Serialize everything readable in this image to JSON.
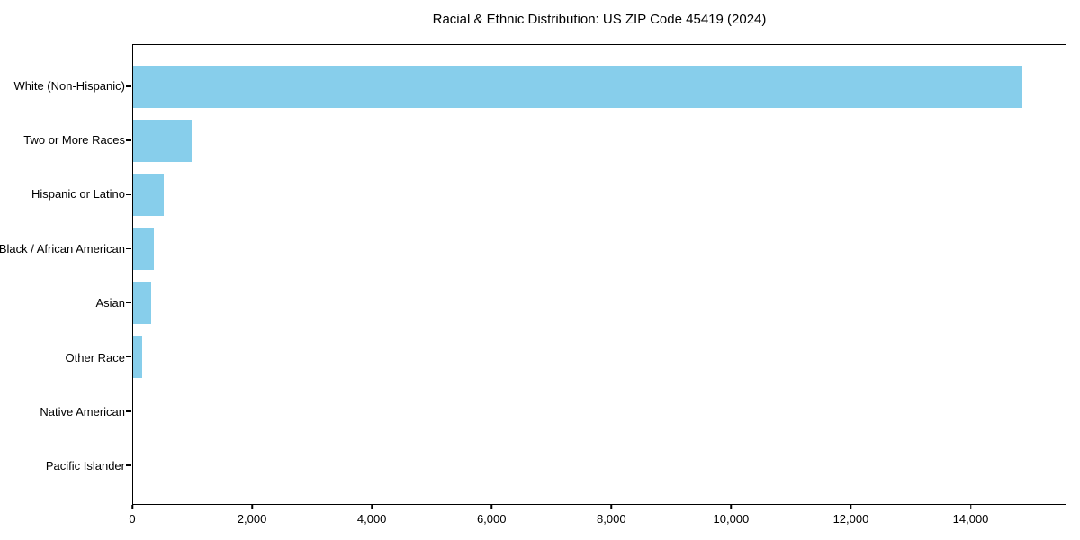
{
  "chart_data": {
    "type": "bar",
    "orientation": "horizontal",
    "title": "Racial & Ethnic Distribution: US ZIP Code 45419 (2024)",
    "categories": [
      "White (Non-Hispanic)",
      "Two or More Races",
      "Hispanic or Latino",
      "Black / African American",
      "Asian",
      "Other Race",
      "Native American",
      "Pacific Islander"
    ],
    "values": [
      14870,
      980,
      510,
      350,
      300,
      150,
      0,
      0
    ],
    "bar_color": "#87CEEB",
    "xlim": [
      0,
      15600
    ],
    "x_ticks": [
      0,
      2000,
      4000,
      6000,
      8000,
      10000,
      12000,
      14000
    ],
    "x_tick_labels": [
      "0",
      "2,000",
      "4,000",
      "6,000",
      "8,000",
      "10,000",
      "12,000",
      "14,000"
    ],
    "xlabel": "",
    "ylabel": "",
    "grid": false,
    "legend": "none",
    "background_color": "#ffffff",
    "text_color": "#000000"
  }
}
